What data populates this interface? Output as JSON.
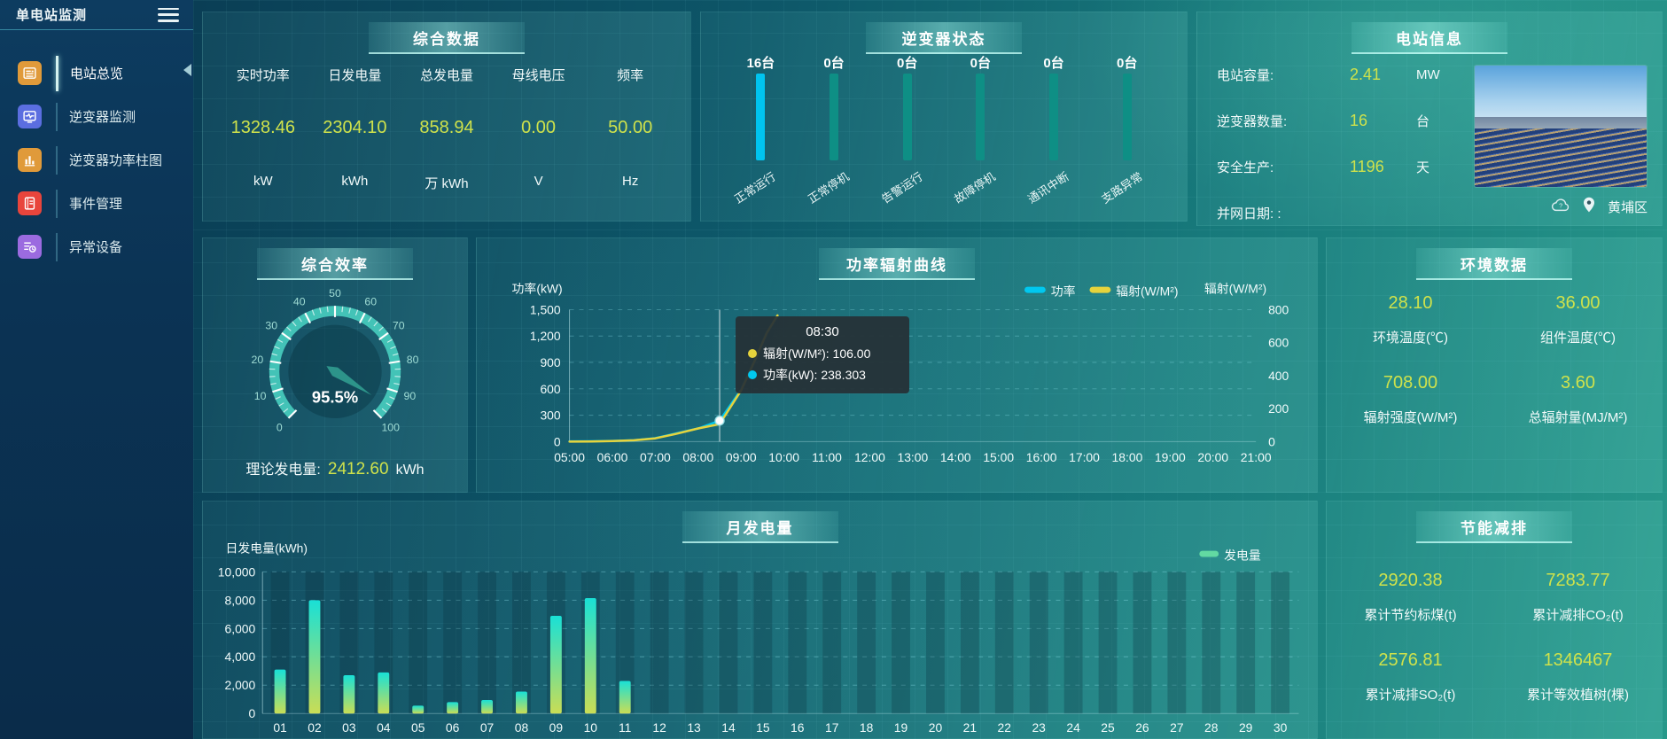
{
  "app": {
    "title": "单电站监测"
  },
  "sidebar": {
    "items": [
      {
        "label": "电站总览",
        "color": "#e09a3a",
        "active": true
      },
      {
        "label": "逆变器监测",
        "color": "#5b6ee0",
        "active": false
      },
      {
        "label": "逆变器功率柱图",
        "color": "#e09a3a",
        "active": false
      },
      {
        "label": "事件管理",
        "color": "#e8453c",
        "active": false
      },
      {
        "label": "异常设备",
        "color": "#9b6be0",
        "active": false
      }
    ]
  },
  "panels": {
    "overview": {
      "title": "综合数据"
    },
    "inverter": {
      "title": "逆变器状态"
    },
    "station": {
      "title": "电站信息"
    },
    "efficiency": {
      "title": "综合效率",
      "theory_label": "理论发电量:",
      "theory_value": "2412.60",
      "theory_unit": "kWh"
    },
    "power_curve": {
      "title": "功率辐射曲线"
    },
    "environment": {
      "title": "环境数据"
    },
    "monthly": {
      "title": "月发电量"
    },
    "saving": {
      "title": "节能减排"
    }
  },
  "overview_metrics": [
    {
      "label": "实时功率",
      "value": "1328.46",
      "unit": "kW"
    },
    {
      "label": "日发电量",
      "value": "2304.10",
      "unit": "kWh"
    },
    {
      "label": "总发电量",
      "value": "858.94",
      "unit": "万 kWh"
    },
    {
      "label": "母线电压",
      "value": "0.00",
      "unit": "V"
    },
    {
      "label": "频率",
      "value": "50.00",
      "unit": "Hz"
    }
  ],
  "station_info": {
    "rows": [
      {
        "label": "电站容量:",
        "value": "2.41",
        "unit": "MW"
      },
      {
        "label": "逆变器数量:",
        "value": "16",
        "unit": "台"
      },
      {
        "label": "安全生产:",
        "value": "1196",
        "unit": "天"
      },
      {
        "label": "并网日期: :",
        "value": "",
        "unit": ""
      }
    ],
    "district": "黄埔区"
  },
  "environment_cells": [
    {
      "value": "28.10",
      "label": "环境温度(℃)"
    },
    {
      "value": "36.00",
      "label": "组件温度(℃)"
    },
    {
      "value": "708.00",
      "label": "辐射强度(W/M²)"
    },
    {
      "value": "3.60",
      "label": "总辐射量(MJ/M²)"
    }
  ],
  "saving_cells": [
    {
      "value": "2920.38",
      "label": "累计节约标煤(t)"
    },
    {
      "value": "7283.77",
      "label": "累计减排CO₂(t)"
    },
    {
      "value": "2576.81",
      "label": "累计减排SO₂(t)"
    },
    {
      "value": "1346467",
      "label": "累计等效植树(棵)"
    }
  ],
  "chart_data": [
    {
      "type": "line",
      "title": "功率辐射曲线",
      "x_axis": {
        "start_hour": 5,
        "end_hour": 21,
        "labels": [
          "05:00",
          "06:00",
          "07:00",
          "08:00",
          "09:00",
          "10:00",
          "11:00",
          "12:00",
          "13:00",
          "14:00",
          "15:00",
          "16:00",
          "17:00",
          "18:00",
          "19:00",
          "20:00",
          "21:00"
        ]
      },
      "left_axis": {
        "label": "功率(kW)",
        "max": 1500,
        "ticks": [
          "0",
          "300",
          "600",
          "900",
          "1,200",
          "1,500"
        ]
      },
      "right_axis": {
        "label": "辐射(W/M²)",
        "max": 800,
        "ticks": [
          "0",
          "200",
          "400",
          "600",
          "800"
        ]
      },
      "legend": [
        {
          "name": "功率",
          "color": "#00c8f0"
        },
        {
          "name": "辐射(W/M²)",
          "color": "#e6d33c"
        }
      ],
      "series": [
        {
          "name": "功率",
          "axis": "left",
          "color": "#00c8f0",
          "points": [
            [
              5,
              3
            ],
            [
              5.5,
              4
            ],
            [
              6,
              8
            ],
            [
              6.5,
              15
            ],
            [
              7,
              40
            ],
            [
              7.5,
              95
            ],
            [
              8,
              150
            ],
            [
              8.5,
              238.3
            ],
            [
              9,
              590
            ],
            [
              9.3,
              900
            ],
            [
              9.6,
              1240
            ],
            [
              9.85,
              1430
            ]
          ]
        },
        {
          "name": "辐射(W/M²)",
          "axis": "right",
          "color": "#e6d33c",
          "points": [
            [
              5,
              0
            ],
            [
              5.5,
              1
            ],
            [
              6,
              3
            ],
            [
              6.5,
              8
            ],
            [
              7,
              20
            ],
            [
              7.5,
              48
            ],
            [
              8,
              80
            ],
            [
              8.5,
              106
            ],
            [
              9,
              310
            ],
            [
              9.3,
              480
            ],
            [
              9.6,
              660
            ],
            [
              9.85,
              765
            ]
          ]
        }
      ],
      "hover": {
        "time": "08:30",
        "hour": 8.5,
        "power": 238.303,
        "lines": [
          {
            "color": "#e6d33c",
            "text": "辐射(W/M²): 106.00"
          },
          {
            "color": "#00c8f0",
            "text": "功率(kW): 238.303"
          }
        ]
      }
    },
    {
      "type": "bar",
      "title": "月发电量",
      "ylabel": "日发电量(kWh)",
      "legend": "发电量",
      "legend_color": "#62d9a2",
      "categories": [
        "01",
        "02",
        "03",
        "04",
        "05",
        "06",
        "07",
        "08",
        "09",
        "10",
        "11",
        "12",
        "13",
        "14",
        "15",
        "16",
        "17",
        "18",
        "19",
        "20",
        "21",
        "22",
        "23",
        "24",
        "25",
        "26",
        "27",
        "28",
        "29",
        "30"
      ],
      "values": [
        3100,
        8000,
        2700,
        2900,
        550,
        800,
        950,
        1550,
        6900,
        8150,
        2300,
        0,
        0,
        0,
        0,
        0,
        0,
        0,
        0,
        0,
        0,
        0,
        0,
        0,
        0,
        0,
        0,
        0,
        0,
        0
      ],
      "ylim": [
        0,
        10000
      ],
      "yticks": [
        "0",
        "2,000",
        "4,000",
        "6,000",
        "8,000",
        "10,000"
      ],
      "bar_gradient": [
        "#19e0d6",
        "#c9dd55"
      ]
    },
    {
      "type": "bar",
      "title": "逆变器状态",
      "unit": "台",
      "items": [
        {
          "count": "16台",
          "label": "正常运行",
          "value": 16,
          "color": "#00c4f0"
        },
        {
          "count": "0台",
          "label": "正常停机",
          "value": 0,
          "color": "#0e8f85"
        },
        {
          "count": "0台",
          "label": "告警运行",
          "value": 0,
          "color": "#0e8f85"
        },
        {
          "count": "0台",
          "label": "故障停机",
          "value": 0,
          "color": "#0e8f85"
        },
        {
          "count": "0台",
          "label": "通讯中断",
          "value": 0,
          "color": "#0e8f85"
        },
        {
          "count": "0台",
          "label": "支路异常",
          "value": 0,
          "color": "#0e8f85"
        }
      ]
    },
    {
      "type": "gauge",
      "title": "综合效率",
      "min": 0,
      "max": 100,
      "tick_step": 10,
      "value": 95.5,
      "display": "95.5%"
    }
  ]
}
